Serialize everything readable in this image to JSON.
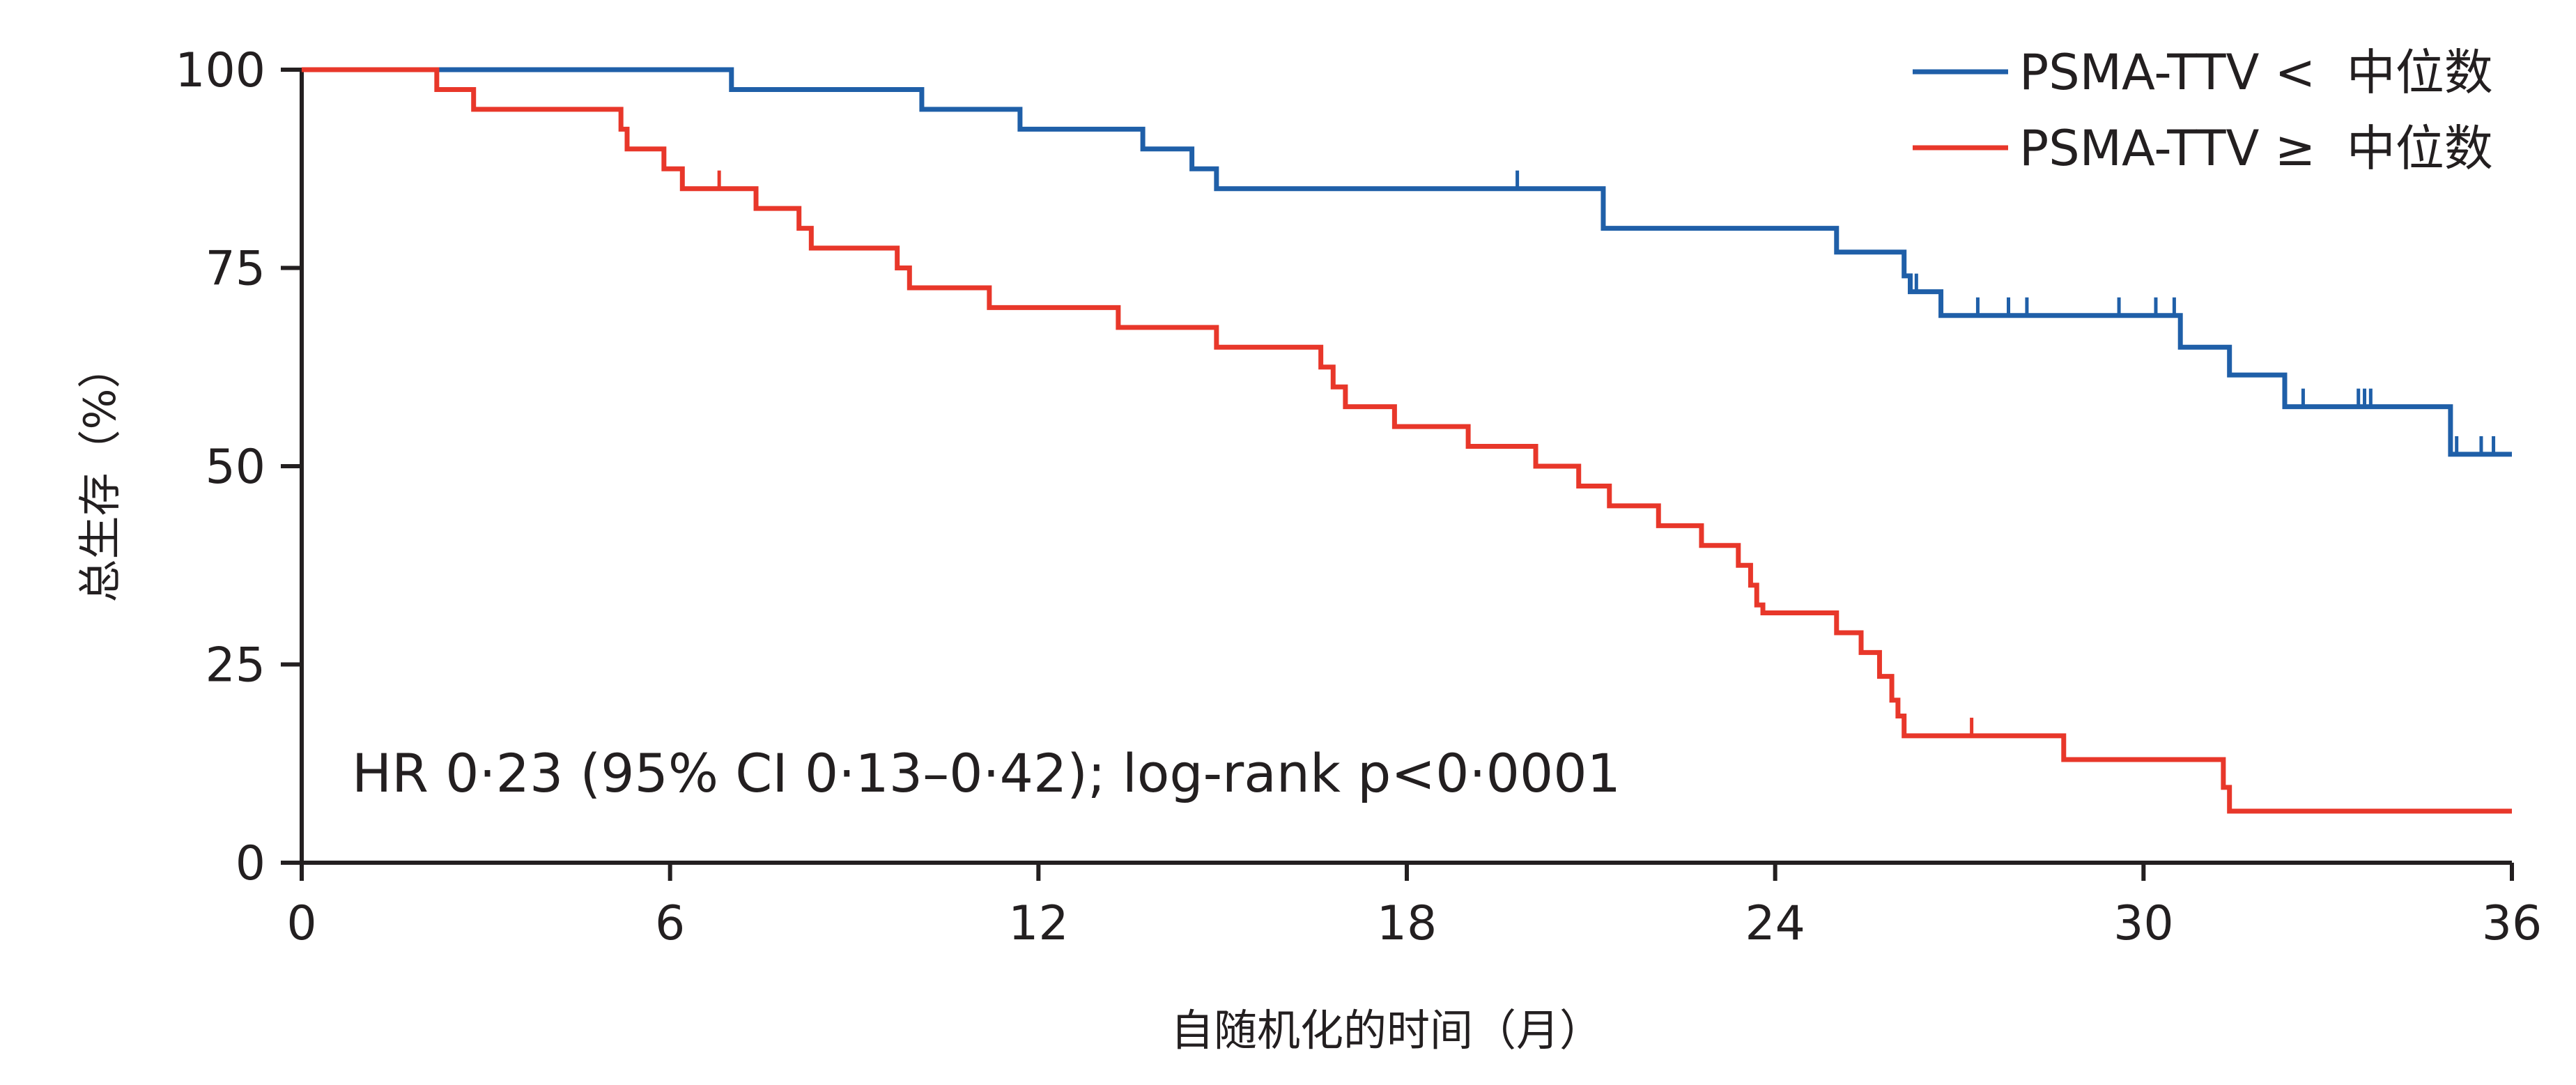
{
  "chart_data": {
    "type": "line",
    "subtype": "kaplan-meier",
    "xlabel": "自随机化的时间（月）",
    "ylabel": "总生存（%）",
    "xlim": [
      0,
      36
    ],
    "ylim": [
      0,
      100
    ],
    "x_ticks": [
      "0",
      "6",
      "12",
      "18",
      "24",
      "30",
      "36"
    ],
    "y_ticks": [
      "0",
      "25",
      "50",
      "75",
      "100"
    ],
    "grid": false,
    "legend_position": "top-right",
    "annotation": "HR 0·23 (95% CI 0·13–0·42); log-rank p<0·0001",
    "series": [
      {
        "name": "PSMA-TTV <  中位数",
        "color": "#1f5fa8",
        "steps": [
          [
            0,
            100
          ],
          [
            7.0,
            97.5
          ],
          [
            10.1,
            95.0
          ],
          [
            11.7,
            92.5
          ],
          [
            13.7,
            90.0
          ],
          [
            14.5,
            87.5
          ],
          [
            14.9,
            85.0
          ],
          [
            21.2,
            80.0
          ],
          [
            25.0,
            77.0
          ],
          [
            26.1,
            74.0
          ],
          [
            26.2,
            72.0
          ],
          [
            26.7,
            69.0
          ],
          [
            30.6,
            65.0
          ],
          [
            31.4,
            61.5
          ],
          [
            32.3,
            57.5
          ],
          [
            35.0,
            51.5
          ]
        ],
        "end_x": 36,
        "censored": [
          [
            19.8,
            85.0
          ],
          [
            26.3,
            72.0
          ],
          [
            27.3,
            69.0
          ],
          [
            27.8,
            69.0
          ],
          [
            28.1,
            69.0
          ],
          [
            29.6,
            69.0
          ],
          [
            30.2,
            69.0
          ],
          [
            30.5,
            69.0
          ],
          [
            32.6,
            57.5
          ],
          [
            33.5,
            57.5
          ],
          [
            33.6,
            57.5
          ],
          [
            33.7,
            57.5
          ],
          [
            35.1,
            51.5
          ],
          [
            35.5,
            51.5
          ],
          [
            35.7,
            51.5
          ]
        ]
      },
      {
        "name": "PSMA-TTV ≥  中位数",
        "color": "#e8372a",
        "steps": [
          [
            0,
            100
          ],
          [
            2.2,
            97.5
          ],
          [
            2.8,
            95.0
          ],
          [
            5.2,
            92.5
          ],
          [
            5.3,
            90.0
          ],
          [
            5.9,
            87.5
          ],
          [
            6.2,
            85.0
          ],
          [
            7.4,
            82.5
          ],
          [
            8.1,
            80.0
          ],
          [
            8.3,
            77.5
          ],
          [
            9.7,
            75.0
          ],
          [
            9.9,
            72.5
          ],
          [
            11.2,
            70.0
          ],
          [
            13.3,
            67.5
          ],
          [
            14.9,
            65.0
          ],
          [
            16.6,
            62.5
          ],
          [
            16.8,
            60.0
          ],
          [
            17.0,
            57.5
          ],
          [
            17.8,
            55.0
          ],
          [
            19.0,
            52.5
          ],
          [
            20.1,
            50.0
          ],
          [
            20.8,
            47.5
          ],
          [
            21.3,
            45.0
          ],
          [
            22.1,
            42.5
          ],
          [
            22.8,
            40.0
          ],
          [
            23.4,
            37.5
          ],
          [
            23.6,
            35.0
          ],
          [
            23.7,
            32.5
          ],
          [
            23.8,
            31.5
          ],
          [
            25.0,
            29.0
          ],
          [
            25.4,
            26.5
          ],
          [
            25.7,
            23.5
          ],
          [
            25.9,
            20.5
          ],
          [
            26.0,
            18.5
          ],
          [
            26.1,
            16.0
          ],
          [
            28.7,
            13.0
          ],
          [
            31.3,
            9.5
          ],
          [
            31.4,
            6.5
          ]
        ],
        "end_x": 36,
        "censored": [
          [
            6.8,
            85.0
          ],
          [
            27.2,
            16.0
          ]
        ]
      }
    ]
  }
}
